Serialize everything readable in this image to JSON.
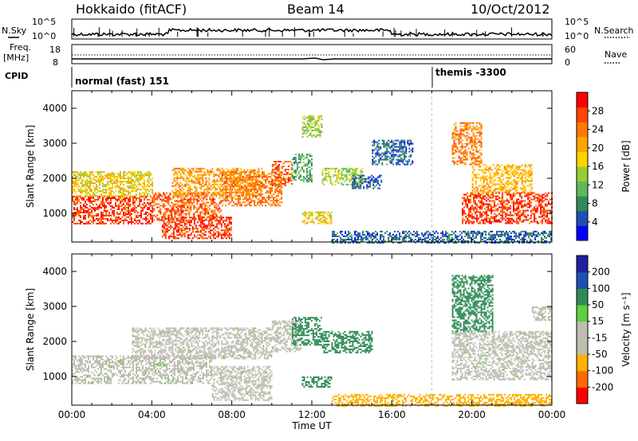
{
  "header": {
    "title_left": "Hokkaido (fitACF)",
    "title_center": "Beam 14",
    "title_right": "10/Oct/2012"
  },
  "strip_labels": {
    "nsky": "N.Sky",
    "freq_line1": "Freq.",
    "freq_line2": "[MHz]",
    "cpid": "CPID",
    "nsearch": "N.Search",
    "nave": "Nave",
    "freq_ticks": [
      "18",
      "8"
    ],
    "nave_ticks": [
      "60",
      "0"
    ],
    "nsky_ticks": [
      "10^5",
      "10^0"
    ],
    "nsearch_ticks": [
      "10^5",
      "10^0"
    ],
    "cpid_segments": [
      {
        "label": "normal (fast) 151",
        "start_hour": 0
      },
      {
        "label": "themis -3300",
        "start_hour": 18
      }
    ]
  },
  "colors": {
    "power_scale": [
      "#0000ff",
      "#1f4fb0",
      "#2e8b57",
      "#5fb85f",
      "#99cc33",
      "#ffd200",
      "#ffa500",
      "#ff7a00",
      "#ff4500",
      "#ff0000"
    ],
    "velocity_scale": [
      "#ff0000",
      "#ff6a00",
      "#ffb000",
      "#bdbdb0",
      "#bdbdb0",
      "#5fcf3f",
      "#2e8b57",
      "#1f4fb0",
      "#2020a0"
    ],
    "ground_scatter": "#bebdb2"
  },
  "chart_data": [
    {
      "type": "heatmap",
      "name": "power",
      "ylabel": "Slant Range [km]",
      "xlabel": "",
      "xlim_hours": [
        0,
        24
      ],
      "ylim": [
        180,
        4500
      ],
      "yticks": [
        "1000",
        "2000",
        "3000",
        "4000"
      ],
      "colorbar": {
        "label": "Power [dB]",
        "ticks": [
          "4",
          "8",
          "12",
          "16",
          "20",
          "24",
          "28"
        ],
        "range": [
          0,
          32
        ]
      },
      "regions": [
        {
          "x0": 0.0,
          "x1": 4.0,
          "y0": 700,
          "y1": 1500,
          "value": 28
        },
        {
          "x0": 0.0,
          "x1": 4.0,
          "y0": 1500,
          "y1": 2200,
          "value": 18
        },
        {
          "x0": 4.0,
          "x1": 7.5,
          "y0": 800,
          "y1": 1600,
          "value": 26
        },
        {
          "x0": 4.5,
          "x1": 8.0,
          "y0": 300,
          "y1": 900,
          "value": 28
        },
        {
          "x0": 5.0,
          "x1": 9.5,
          "y0": 1500,
          "y1": 2300,
          "value": 22
        },
        {
          "x0": 7.5,
          "x1": 10.5,
          "y0": 1200,
          "y1": 2200,
          "value": 24
        },
        {
          "x0": 10.0,
          "x1": 11.0,
          "y0": 1800,
          "y1": 2500,
          "value": 26
        },
        {
          "x0": 11.0,
          "x1": 12.0,
          "y0": 1900,
          "y1": 2700,
          "value": 10
        },
        {
          "x0": 11.5,
          "x1": 12.5,
          "y0": 3200,
          "y1": 3800,
          "value": 14
        },
        {
          "x0": 11.5,
          "x1": 13.0,
          "y0": 700,
          "y1": 1050,
          "value": 18
        },
        {
          "x0": 12.5,
          "x1": 14.5,
          "y0": 1800,
          "y1": 2300,
          "value": 14
        },
        {
          "x0": 14.0,
          "x1": 15.5,
          "y0": 1700,
          "y1": 2100,
          "value": 6
        },
        {
          "x0": 15.0,
          "x1": 17.0,
          "y0": 2400,
          "y1": 3100,
          "value": 6
        },
        {
          "x0": 13.0,
          "x1": 24.0,
          "y0": 180,
          "y1": 500,
          "value": 6
        },
        {
          "x0": 19.5,
          "x1": 24.0,
          "y0": 700,
          "y1": 1600,
          "value": 28
        },
        {
          "x0": 20.0,
          "x1": 23.0,
          "y0": 1600,
          "y1": 2400,
          "value": 20
        },
        {
          "x0": 19.0,
          "x1": 20.5,
          "y0": 2400,
          "y1": 3600,
          "value": 24
        }
      ]
    },
    {
      "type": "heatmap",
      "name": "velocity",
      "ylabel": "Slant Range [km]",
      "xlabel": "Time UT",
      "xlim_hours": [
        0,
        24
      ],
      "ylim": [
        180,
        4500
      ],
      "yticks": [
        "1000",
        "2000",
        "3000",
        "4000"
      ],
      "xticks": [
        "00:00",
        "04:00",
        "08:00",
        "12:00",
        "16:00",
        "20:00",
        "00:00"
      ],
      "colorbar": {
        "label": "Velocity [m s⁻¹]",
        "ticks": [
          "-200",
          "-100",
          "-50",
          "-15",
          "15",
          "50",
          "100",
          "200"
        ]
      },
      "regions": [
        {
          "x0": 0.0,
          "x1": 7.0,
          "y0": 800,
          "y1": 1600,
          "value": 0
        },
        {
          "x0": 3.0,
          "x1": 10.0,
          "y0": 1500,
          "y1": 2400,
          "value": 0
        },
        {
          "x0": 7.0,
          "x1": 10.0,
          "y0": 300,
          "y1": 1300,
          "value": 0
        },
        {
          "x0": 10.0,
          "x1": 11.5,
          "y0": 1700,
          "y1": 2600,
          "value": 0
        },
        {
          "x0": 11.0,
          "x1": 12.5,
          "y0": 1900,
          "y1": 2700,
          "value": 40
        },
        {
          "x0": 12.5,
          "x1": 15.0,
          "y0": 1700,
          "y1": 2300,
          "value": 40
        },
        {
          "x0": 11.5,
          "x1": 13.0,
          "y0": 700,
          "y1": 1000,
          "value": 40
        },
        {
          "x0": 13.0,
          "x1": 24.0,
          "y0": 180,
          "y1": 500,
          "value": -60
        },
        {
          "x0": 19.0,
          "x1": 24.0,
          "y0": 900,
          "y1": 2300,
          "value": 0
        },
        {
          "x0": 19.0,
          "x1": 21.0,
          "y0": 2300,
          "y1": 3900,
          "value": 40
        },
        {
          "x0": 23.0,
          "x1": 24.0,
          "y0": 2600,
          "y1": 3000,
          "value": 0
        }
      ]
    }
  ]
}
